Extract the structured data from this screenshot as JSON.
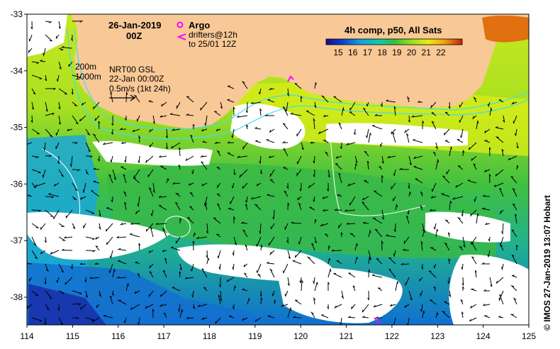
{
  "map": {
    "date": "26-Jan-2019",
    "time": "00Z",
    "argo_label": "Argo",
    "drifters_label": "drifters@12h",
    "drifters_to": "to 25/01 12Z",
    "isobath_200": "200m",
    "isobath_1000": "1000m",
    "altimetry_product": "NRT00 GSL",
    "altimetry_date": "22-Jan 00:00Z",
    "vector_scale": "0.5m/s (1kt 24h)",
    "colorbar_title": "4h comp, p50, All Sats",
    "colorbar_ticks": [
      "15",
      "16",
      "17",
      "18",
      "19",
      "20",
      "21",
      "22"
    ],
    "credit": "© IMOS 27-Jan-2019 13:07 Hobart"
  },
  "axes": {
    "lon_ticks": [
      "114",
      "115",
      "116",
      "117",
      "118",
      "119",
      "120",
      "121",
      "122",
      "123",
      "124",
      "125"
    ],
    "lat_ticks": [
      "-33",
      "-34",
      "-35",
      "-36",
      "-37",
      "-38"
    ]
  },
  "colors": {
    "land": "#f8c896",
    "argo": "#ff00ff",
    "isobath": "#40e0e8"
  }
}
